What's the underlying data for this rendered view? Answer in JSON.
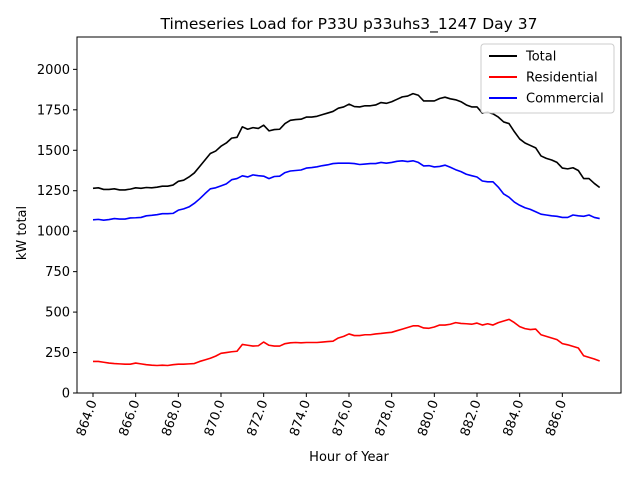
{
  "chart_data": {
    "type": "line",
    "title": "Timeseries Load for P33U p33uhs3_1247  Day 37",
    "xlabel": "Hour of Year",
    "ylabel": "kW total",
    "xlim": [
      863.25,
      888.75
    ],
    "ylim": [
      0,
      2200
    ],
    "xticks": [
      864,
      866,
      868,
      870,
      872,
      874,
      876,
      878,
      880,
      882,
      884,
      886
    ],
    "xtick_labels": [
      "864.0",
      "866.0",
      "868.0",
      "870.0",
      "872.0",
      "874.0",
      "876.0",
      "878.0",
      "880.0",
      "882.0",
      "884.0",
      "886.0"
    ],
    "yticks": [
      0,
      250,
      500,
      750,
      1000,
      1250,
      1500,
      1750,
      2000
    ],
    "ytick_labels": [
      "0",
      "250",
      "500",
      "750",
      "1000",
      "1250",
      "1500",
      "1750",
      "2000"
    ],
    "legend_position": "top-right",
    "x_start": 864.0,
    "x_step": 0.25,
    "series": [
      {
        "name": "Total",
        "color": "#000000",
        "values": [
          1265,
          1268,
          1258,
          1258,
          1262,
          1255,
          1255,
          1260,
          1268,
          1265,
          1270,
          1268,
          1272,
          1278,
          1278,
          1285,
          1308,
          1315,
          1335,
          1360,
          1400,
          1440,
          1480,
          1495,
          1525,
          1545,
          1575,
          1580,
          1645,
          1630,
          1640,
          1635,
          1655,
          1620,
          1628,
          1630,
          1665,
          1685,
          1690,
          1692,
          1705,
          1705,
          1710,
          1720,
          1730,
          1740,
          1760,
          1768,
          1785,
          1770,
          1768,
          1775,
          1775,
          1780,
          1795,
          1790,
          1800,
          1815,
          1830,
          1835,
          1850,
          1840,
          1805,
          1805,
          1805,
          1820,
          1828,
          1818,
          1812,
          1800,
          1780,
          1768,
          1768,
          1730,
          1735,
          1725,
          1705,
          1675,
          1665,
          1615,
          1570,
          1545,
          1530,
          1515,
          1465,
          1450,
          1440,
          1425,
          1390,
          1385,
          1392,
          1375,
          1325,
          1325,
          1295,
          1270
        ]
      },
      {
        "name": "Residential",
        "color": "#ff0000",
        "values": [
          195,
          195,
          190,
          185,
          182,
          180,
          178,
          178,
          185,
          180,
          175,
          172,
          170,
          172,
          170,
          175,
          178,
          178,
          180,
          182,
          195,
          205,
          215,
          228,
          245,
          250,
          255,
          258,
          300,
          295,
          290,
          292,
          315,
          295,
          290,
          290,
          305,
          310,
          312,
          310,
          312,
          312,
          312,
          315,
          318,
          320,
          340,
          350,
          365,
          355,
          355,
          360,
          360,
          365,
          368,
          372,
          375,
          385,
          395,
          405,
          415,
          415,
          402,
          400,
          408,
          420,
          420,
          425,
          435,
          430,
          428,
          425,
          432,
          420,
          428,
          420,
          435,
          445,
          455,
          435,
          410,
          398,
          392,
          395,
          360,
          350,
          340,
          330,
          305,
          298,
          288,
          278,
          230,
          220,
          210,
          198
        ]
      },
      {
        "name": "Commercial",
        "color": "#0000ff",
        "values": [
          1070,
          1073,
          1068,
          1072,
          1078,
          1075,
          1075,
          1082,
          1083,
          1085,
          1095,
          1098,
          1102,
          1108,
          1108,
          1110,
          1130,
          1138,
          1150,
          1172,
          1200,
          1232,
          1262,
          1268,
          1280,
          1292,
          1318,
          1325,
          1342,
          1335,
          1348,
          1343,
          1340,
          1325,
          1338,
          1340,
          1362,
          1372,
          1375,
          1378,
          1390,
          1393,
          1398,
          1405,
          1410,
          1418,
          1420,
          1420,
          1420,
          1418,
          1412,
          1415,
          1418,
          1418,
          1425,
          1420,
          1425,
          1432,
          1435,
          1430,
          1435,
          1425,
          1403,
          1405,
          1397,
          1400,
          1408,
          1395,
          1380,
          1368,
          1352,
          1343,
          1335,
          1310,
          1305,
          1305,
          1272,
          1230,
          1210,
          1180,
          1160,
          1145,
          1135,
          1120,
          1105,
          1100,
          1095,
          1092,
          1085,
          1085,
          1100,
          1095,
          1092,
          1100,
          1085,
          1078
        ]
      }
    ]
  }
}
